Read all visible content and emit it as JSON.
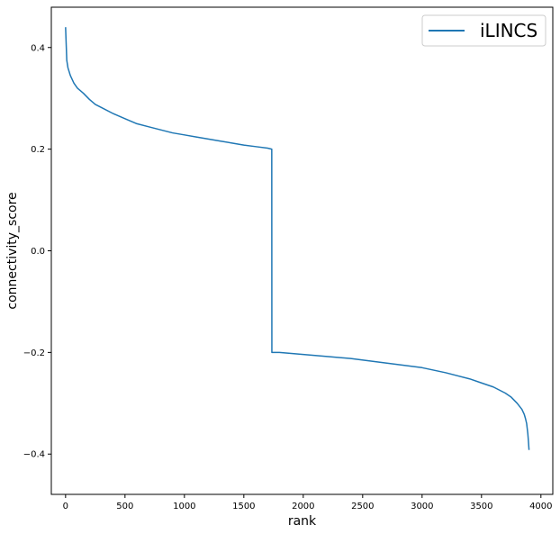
{
  "chart_data": {
    "type": "line",
    "xlabel": "rank",
    "ylabel": "connectivity_score",
    "xlim": [
      -120,
      4100
    ],
    "ylim": [
      -0.4793,
      0.4793
    ],
    "xticks": [
      0,
      500,
      1000,
      1500,
      2000,
      2500,
      3000,
      3500,
      4000
    ],
    "yticks": [
      -0.4,
      -0.2,
      0.0,
      0.2,
      0.4
    ],
    "ytick_labels": [
      "−0.4",
      "−0.2",
      "0.0",
      "0.2",
      "0.4"
    ],
    "grid": false,
    "legend_position": "top-right",
    "series": [
      {
        "name": "iLINCS",
        "color": "#1f77b4",
        "x": [
          0,
          10,
          20,
          40,
          70,
          100,
          150,
          200,
          250,
          300,
          400,
          500,
          600,
          700,
          800,
          900,
          1000,
          1100,
          1200,
          1300,
          1400,
          1500,
          1600,
          1700,
          1735,
          1736,
          1800,
          2000,
          2200,
          2400,
          2600,
          2800,
          3000,
          3200,
          3400,
          3500,
          3600,
          3700,
          3750,
          3800,
          3840,
          3860,
          3870,
          3880,
          3885,
          3890,
          3895,
          3900
        ],
        "y": [
          0.44,
          0.375,
          0.36,
          0.345,
          0.33,
          0.32,
          0.31,
          0.298,
          0.288,
          0.282,
          0.27,
          0.26,
          0.25,
          0.244,
          0.238,
          0.232,
          0.228,
          0.224,
          0.22,
          0.216,
          0.212,
          0.208,
          0.205,
          0.202,
          0.2,
          -0.2,
          -0.2,
          -0.204,
          -0.208,
          -0.212,
          -0.218,
          -0.224,
          -0.23,
          -0.24,
          -0.252,
          -0.26,
          -0.268,
          -0.28,
          -0.288,
          -0.3,
          -0.312,
          -0.322,
          -0.33,
          -0.34,
          -0.35,
          -0.36,
          -0.375,
          -0.392
        ]
      }
    ]
  }
}
